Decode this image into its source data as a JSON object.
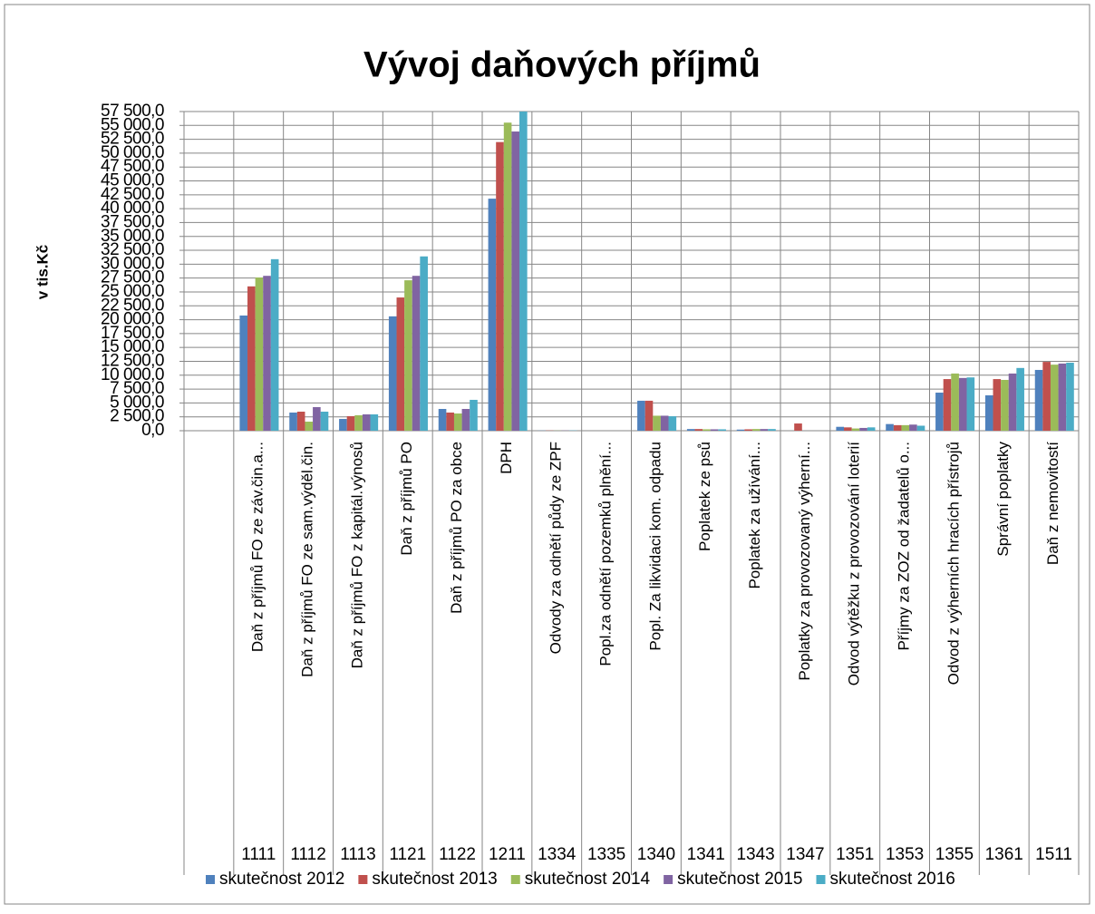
{
  "chart_data": {
    "type": "bar",
    "title": "Vývoj daňových příjmů",
    "y_axis_label": "v tis.Kč",
    "categories": [
      null,
      "Daň z příjmů FO ze záv.čin.a...",
      "Daň z příjmů FO ze sam.výděl.čin.",
      "Daň z příjmů FO z kapitál.výnosů",
      "Daň z příjmů PO",
      "Daň z příjmů PO za obce",
      "DPH",
      "Odvody za odnětí půdy ze ZPF",
      "Popl.za odnětí pozemků plnění...",
      "Popl. Za likvidaci kom. odpadu",
      "Poplatek ze psů",
      "Poplatek za užívání...",
      "Poplatky za provozovaný výherní...",
      "Odvod výtěžku z provozování loterií",
      "Příjmy za ZOZ od žadatelů o...",
      "Odvod z výherních hracích přístrojů",
      "Správní poplatky",
      "Daň z nemovitostí"
    ],
    "category_codes": [
      null,
      "1111",
      "1112",
      "1113",
      "1121",
      "1122",
      "1211",
      "1334",
      "1335",
      "1340",
      "1341",
      "1343",
      "1347",
      "1351",
      "1353",
      "1355",
      "1361",
      "1511"
    ],
    "series": [
      {
        "name": "skutečnost 2012",
        "color": "#4f81bd",
        "values": [
          null,
          20750,
          3270,
          2120,
          20600,
          3920,
          41800,
          30,
          0,
          5400,
          300,
          200,
          0,
          700,
          1200,
          6860,
          6370,
          10950
        ]
      },
      {
        "name": "skutečnost 2013",
        "color": "#c0504d",
        "values": [
          null,
          26000,
          3430,
          2610,
          24000,
          3270,
          52000,
          40,
          0,
          5400,
          300,
          250,
          1300,
          600,
          1000,
          9300,
          9300,
          12400
        ]
      },
      {
        "name": "skutečnost 2014",
        "color": "#9bbb59",
        "values": [
          null,
          27600,
          1630,
          2780,
          27100,
          3100,
          55500,
          20,
          0,
          2700,
          250,
          300,
          0,
          400,
          1000,
          10300,
          9150,
          11900
        ]
      },
      {
        "name": "skutečnost 2015",
        "color": "#8064a2",
        "values": [
          null,
          27900,
          4250,
          2940,
          27900,
          3920,
          53900,
          30,
          0,
          2700,
          250,
          300,
          0,
          500,
          1100,
          9500,
          10300,
          12100
        ]
      },
      {
        "name": "skutečnost 2016",
        "color": "#4bacc6",
        "values": [
          null,
          30900,
          3430,
          2940,
          31400,
          5560,
          57500,
          50,
          0,
          2600,
          250,
          300,
          0,
          600,
          900,
          9600,
          11300,
          12250
        ]
      }
    ],
    "ylim": [
      0,
      57500
    ],
    "yticks": [
      {
        "value": 0,
        "label": "0,0"
      },
      {
        "value": 2500,
        "label": "2 500,0"
      },
      {
        "value": 5000,
        "label": "5 000,0"
      },
      {
        "value": 7500,
        "label": "7 500,0"
      },
      {
        "value": 10000,
        "label": "10 000,0"
      },
      {
        "value": 12500,
        "label": "12 500,0"
      },
      {
        "value": 15000,
        "label": "15 000,0"
      },
      {
        "value": 17500,
        "label": "17 500,0"
      },
      {
        "value": 20000,
        "label": "20 000,0"
      },
      {
        "value": 22500,
        "label": "22 500,0"
      },
      {
        "value": 25000,
        "label": "25 000,0"
      },
      {
        "value": 27500,
        "label": "27 500,0"
      },
      {
        "value": 30000,
        "label": "30 000,0"
      },
      {
        "value": 32500,
        "label": "32 500,0"
      },
      {
        "value": 35000,
        "label": "35 000,0"
      },
      {
        "value": 37500,
        "label": "37 500,0"
      },
      {
        "value": 40000,
        "label": "40 000,0"
      },
      {
        "value": 42500,
        "label": "42 500,0"
      },
      {
        "value": 45000,
        "label": "45 000,0"
      },
      {
        "value": 47500,
        "label": "47 500,0"
      },
      {
        "value": 50000,
        "label": "50 000,0"
      },
      {
        "value": 52500,
        "label": "52 500,0"
      },
      {
        "value": 55000,
        "label": "55 000,0"
      },
      {
        "value": 57500,
        "label": "57 500,0"
      }
    ],
    "grid": true
  }
}
